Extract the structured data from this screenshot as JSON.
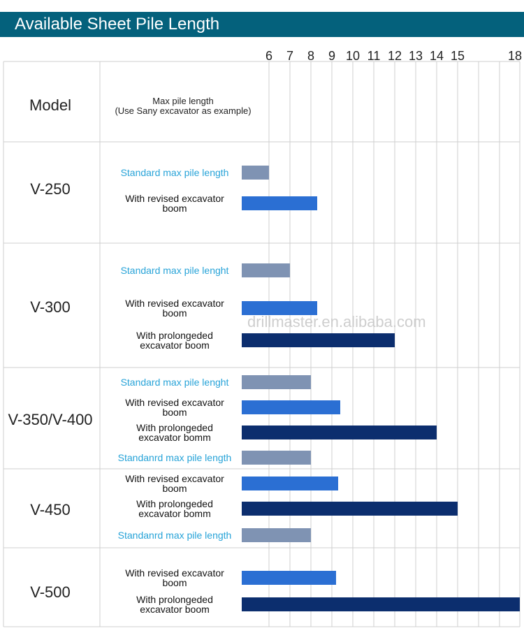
{
  "header": {
    "title": "Available Sheet Pile Length"
  },
  "watermark": "drillmaster.en.alibaba.com",
  "colors": {
    "header_bg": "#04617c",
    "standard": "#7f93b3",
    "revised": "#2b6fd3",
    "prolonged": "#0c2e6e",
    "standard_label": "#27a3d8",
    "grid": "#cfcfcf"
  },
  "chart_data": {
    "type": "bar",
    "orientation": "horizontal",
    "title": "Available Sheet Pile Length",
    "column_headers": {
      "model": "Model",
      "description": [
        "Max pile length",
        "(Use Sany excavator as example)"
      ]
    },
    "x_ticks": [
      "6",
      "7",
      "8",
      "9",
      "10",
      "11",
      "12",
      "13",
      "14",
      "15",
      "18"
    ],
    "xlim": [
      5,
      18
    ],
    "grid": true,
    "groups": [
      {
        "model": "V-250",
        "bars": [
          {
            "label": [
              "Standard max pile length"
            ],
            "kind": "standard",
            "value": 6.0
          },
          {
            "label": [
              "With revised excavator",
              "boom"
            ],
            "kind": "revised",
            "value": 8.3
          }
        ]
      },
      {
        "model": "V-300",
        "bars": [
          {
            "label": [
              "Standard max pile lenght"
            ],
            "kind": "standard",
            "value": 7.0
          },
          {
            "label": [
              "With revised excavator",
              "boom"
            ],
            "kind": "revised",
            "value": 8.3
          },
          {
            "label": [
              "With prolongeded",
              "excavator boom"
            ],
            "kind": "prolonged",
            "value": 12.0
          }
        ]
      },
      {
        "model": "V-350/V-400",
        "bars": [
          {
            "label": [
              "Standard max pile lenght"
            ],
            "kind": "standard",
            "value": 8.0
          },
          {
            "label": [
              "With revised excavator",
              "boom"
            ],
            "kind": "revised",
            "value": 9.4
          },
          {
            "label": [
              "With prolongeded",
              "excavator bomm"
            ],
            "kind": "prolonged",
            "value": 14.0
          }
        ]
      },
      {
        "model": "V-450",
        "bars": [
          {
            "label": [
              "Standanrd max pile length"
            ],
            "kind": "standard",
            "value": 8.0
          },
          {
            "label": [
              "With revised excavator",
              "boom"
            ],
            "kind": "revised",
            "value": 9.3
          },
          {
            "label": [
              "With prolongeded",
              "excavator bomm"
            ],
            "kind": "prolonged",
            "value": 15.0
          }
        ]
      },
      {
        "model": "V-500",
        "bars": [
          {
            "label": [
              "Standanrd max pile length"
            ],
            "kind": "standard",
            "value": 8.0
          },
          {
            "label": [
              "With revised excavator",
              "boom"
            ],
            "kind": "revised",
            "value": 9.2
          },
          {
            "label": [
              "With prolongeded",
              "excavator boom"
            ],
            "kind": "prolonged",
            "value": 18.0
          }
        ]
      }
    ]
  }
}
